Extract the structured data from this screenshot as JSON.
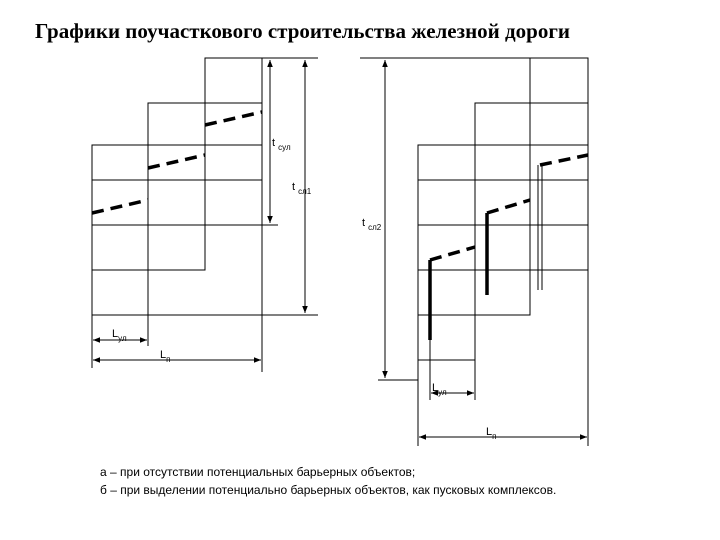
{
  "header": {
    "title": "Графики поучасткового строительства железной дороги"
  },
  "labels": [
    {
      "text": "t",
      "sub": "сул"
    },
    {
      "text": "t",
      "sub": "сл1"
    },
    {
      "text": "L",
      "sub": "ул"
    },
    {
      "text": "L",
      "sub": "п"
    },
    {
      "text": "t",
      "sub": "сл2"
    },
    {
      "text": "L",
      "sub": "ул"
    },
    {
      "text": "L",
      "sub": "п"
    }
  ],
  "caption": [
    "а – при отсутствии потенциальных барьерных объектов;",
    "б – при выделении потенциально барьерных объектов, как пусковых комплексов."
  ]
}
